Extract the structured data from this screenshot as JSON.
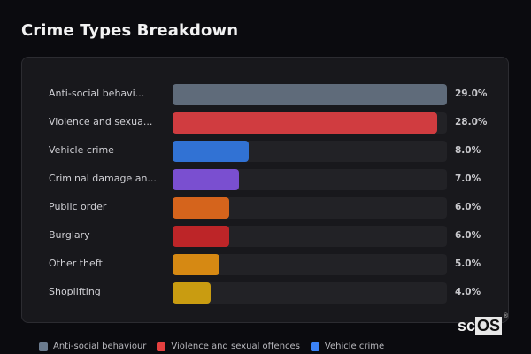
{
  "header": {
    "title": "Crime Types Breakdown"
  },
  "chart_data": {
    "type": "bar",
    "orientation": "horizontal",
    "title": "Crime Types Breakdown",
    "categories": [
      "Anti-social behavi...",
      "Violence and sexua...",
      "Vehicle crime",
      "Criminal damage an...",
      "Public order",
      "Burglary",
      "Other theft",
      "Shoplifting"
    ],
    "values": [
      29.0,
      28.0,
      8.0,
      7.0,
      6.0,
      6.0,
      5.0,
      4.0
    ],
    "value_labels": [
      "29.0%",
      "28.0%",
      "8.0%",
      "7.0%",
      "6.0%",
      "6.0%",
      "5.0%",
      "4.0%"
    ],
    "colors": [
      "#5f6b7a",
      "#d03c40",
      "#3172d4",
      "#7a4fd0",
      "#d5641c",
      "#bd2528",
      "#d68913",
      "#c99c11"
    ],
    "xlim": [
      0,
      29
    ],
    "grid": false,
    "legend_position": "bottom"
  },
  "legend": {
    "items": [
      {
        "label": "Anti-social behaviour",
        "color": "#6b7b8e"
      },
      {
        "label": "Violence and sexual offences",
        "color": "#e5403f"
      },
      {
        "label": "Vehicle crime",
        "color": "#3b82f6"
      }
    ]
  },
  "logo": {
    "prefix": "sc",
    "highlight": "OS",
    "mark": "®"
  }
}
